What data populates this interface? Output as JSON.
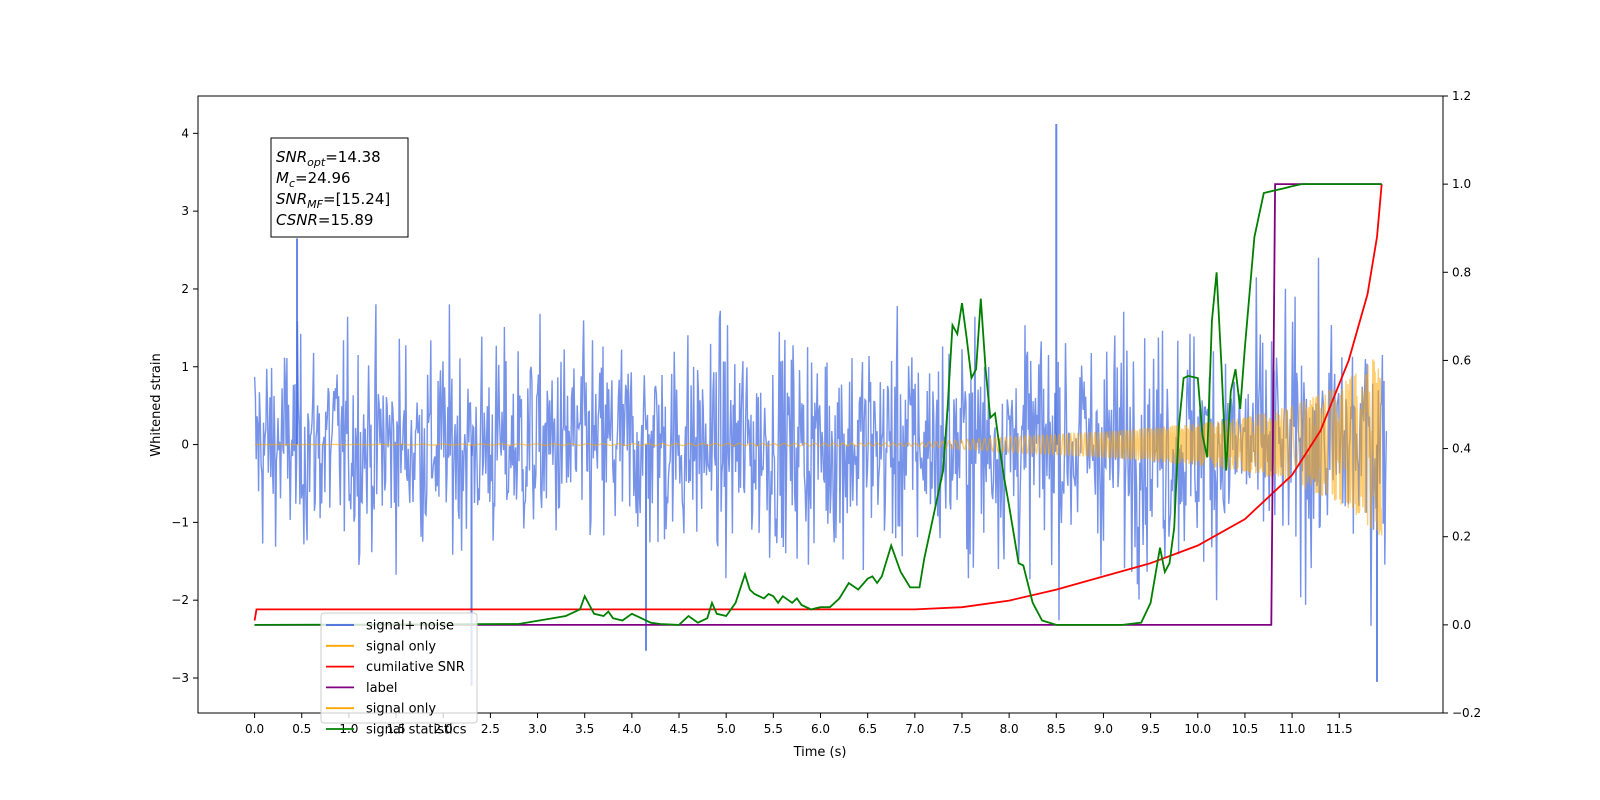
{
  "chart_data": {
    "type": "line",
    "title": "",
    "xlabel": "Time (s)",
    "ylabel": "Whitened strain",
    "xlim": [
      -0.6,
      12.6
    ],
    "ylim": [
      -3.45,
      4.48
    ],
    "y2lim": [
      -0.2,
      1.2
    ],
    "xticks": [
      "0.0",
      "0.5",
      "1.0",
      "1.5",
      "2.0",
      "2.5",
      "3.0",
      "3.5",
      "4.0",
      "4.5",
      "5.0",
      "5.5",
      "6.0",
      "6.5",
      "7.0",
      "7.5",
      "8.0",
      "8.5",
      "9.0",
      "9.5",
      "10.0",
      "10.5",
      "11.0",
      "11.5"
    ],
    "yticks": [
      "−3",
      "−2",
      "−1",
      "0",
      "1",
      "2",
      "3",
      "4"
    ],
    "y2ticks": [
      "−0.2",
      "0.0",
      "0.2",
      "0.4",
      "0.6",
      "0.8",
      "1.0",
      "1.2"
    ],
    "annotation": {
      "lines": [
        {
          "sym": "SNR",
          "sub": "opt",
          "value": "=14.38"
        },
        {
          "sym": "M",
          "sub": "c",
          "value": "=24.96"
        },
        {
          "sym": "SNR",
          "sub": "MF",
          "value": "=[15.24]"
        },
        {
          "sym": "CSNR",
          "sub": "",
          "value": "=15.89"
        }
      ]
    },
    "legend": {
      "placement": "lower-left",
      "entries": [
        {
          "label": "signal+ noise",
          "color": "#4169e1"
        },
        {
          "label": "signal only",
          "color": "#ffa500"
        },
        {
          "label": "cumilative SNR",
          "color": "#ff0000"
        },
        {
          "label": "label",
          "color": "#800080"
        },
        {
          "label": "signal only",
          "color": "#ffa500"
        },
        {
          "label": "signal statistics",
          "color": "#008000"
        }
      ]
    },
    "colors": {
      "noise": "#4169e1",
      "signal": "#ffa500",
      "csnr": "#ff0000",
      "label": "#800080",
      "stats": "#008000"
    },
    "series": [
      {
        "name": "signal+ noise",
        "axis": "left",
        "kind": "noise",
        "envelope_x": [
          0,
          3,
          6,
          8.5,
          10,
          12
        ],
        "envelope_y": [
          2.2,
          2.2,
          2.3,
          2.4,
          2.5,
          2.6
        ],
        "spikes": [
          [
            0.45,
            2.65
          ],
          [
            8.5,
            4.12
          ],
          [
            2.3,
            -3.1
          ],
          [
            4.15,
            -2.65
          ],
          [
            11.9,
            -3.05
          ]
        ]
      },
      {
        "name": "signal only",
        "axis": "left",
        "kind": "chirp",
        "envelope_x": [
          0,
          7,
          8,
          9,
          10,
          10.5,
          11,
          11.5,
          12
        ],
        "envelope_y": [
          0.0,
          0.02,
          0.1,
          0.17,
          0.27,
          0.35,
          0.5,
          0.75,
          1.25
        ]
      },
      {
        "name": "cumilative SNR",
        "axis": "right",
        "x": [
          0,
          0.02,
          7,
          7.5,
          8,
          8.5,
          9,
          9.5,
          10,
          10.5,
          11,
          11.3,
          11.6,
          11.8,
          11.9,
          11.95
        ],
        "y": [
          0.01,
          0.035,
          0.035,
          0.04,
          0.055,
          0.08,
          0.11,
          0.14,
          0.18,
          0.24,
          0.34,
          0.44,
          0.6,
          0.75,
          0.88,
          1.0
        ]
      },
      {
        "name": "label",
        "axis": "right",
        "x": [
          0,
          10.78,
          10.8,
          10.82,
          11.95
        ],
        "y": [
          0.0,
          0.0,
          0.5,
          1.0,
          1.0
        ]
      },
      {
        "name": "signal statistics",
        "axis": "right",
        "x": [
          0,
          2.8,
          3.3,
          3.45,
          3.5,
          3.6,
          3.7,
          3.75,
          3.8,
          3.9,
          4.0,
          4.1,
          4.2,
          4.3,
          4.5,
          4.6,
          4.7,
          4.8,
          4.85,
          4.9,
          5.0,
          5.1,
          5.2,
          5.25,
          5.3,
          5.4,
          5.45,
          5.5,
          5.55,
          5.6,
          5.7,
          5.75,
          5.8,
          5.9,
          6.0,
          6.1,
          6.2,
          6.3,
          6.4,
          6.5,
          6.55,
          6.6,
          6.65,
          6.75,
          6.85,
          6.95,
          7.05,
          7.1,
          7.2,
          7.3,
          7.35,
          7.4,
          7.45,
          7.5,
          7.55,
          7.6,
          7.65,
          7.7,
          7.75,
          7.8,
          7.85,
          7.9,
          7.95,
          8.0,
          8.1,
          8.15,
          8.25,
          8.35,
          8.5,
          8.7,
          9.2,
          9.4,
          9.5,
          9.6,
          9.65,
          9.7,
          9.75,
          9.8,
          9.85,
          9.9,
          10.0,
          10.05,
          10.1,
          10.15,
          10.2,
          10.25,
          10.3,
          10.35,
          10.4,
          10.45,
          10.5,
          10.6,
          10.7,
          10.8,
          10.9,
          11.0,
          11.1,
          11.2,
          11.3,
          11.5,
          11.95
        ],
        "y": [
          0.0,
          0.002,
          0.02,
          0.035,
          0.065,
          0.025,
          0.02,
          0.03,
          0.015,
          0.01,
          0.025,
          0.015,
          0.005,
          0.002,
          0.0,
          0.02,
          0.005,
          0.015,
          0.05,
          0.025,
          0.02,
          0.05,
          0.115,
          0.08,
          0.07,
          0.06,
          0.07,
          0.065,
          0.05,
          0.065,
          0.05,
          0.06,
          0.045,
          0.035,
          0.04,
          0.04,
          0.06,
          0.095,
          0.08,
          0.105,
          0.11,
          0.095,
          0.11,
          0.18,
          0.12,
          0.085,
          0.085,
          0.15,
          0.25,
          0.35,
          0.5,
          0.68,
          0.66,
          0.73,
          0.65,
          0.56,
          0.58,
          0.74,
          0.58,
          0.47,
          0.48,
          0.4,
          0.33,
          0.27,
          0.14,
          0.135,
          0.05,
          0.01,
          0.0,
          0.0,
          0.0,
          0.005,
          0.05,
          0.175,
          0.12,
          0.14,
          0.22,
          0.45,
          0.56,
          0.565,
          0.56,
          0.43,
          0.38,
          0.69,
          0.8,
          0.59,
          0.35,
          0.53,
          0.58,
          0.49,
          0.63,
          0.88,
          0.98,
          0.985,
          0.99,
          0.995,
          1.0,
          1.0,
          1.0,
          1.0,
          1.0
        ]
      }
    ]
  }
}
